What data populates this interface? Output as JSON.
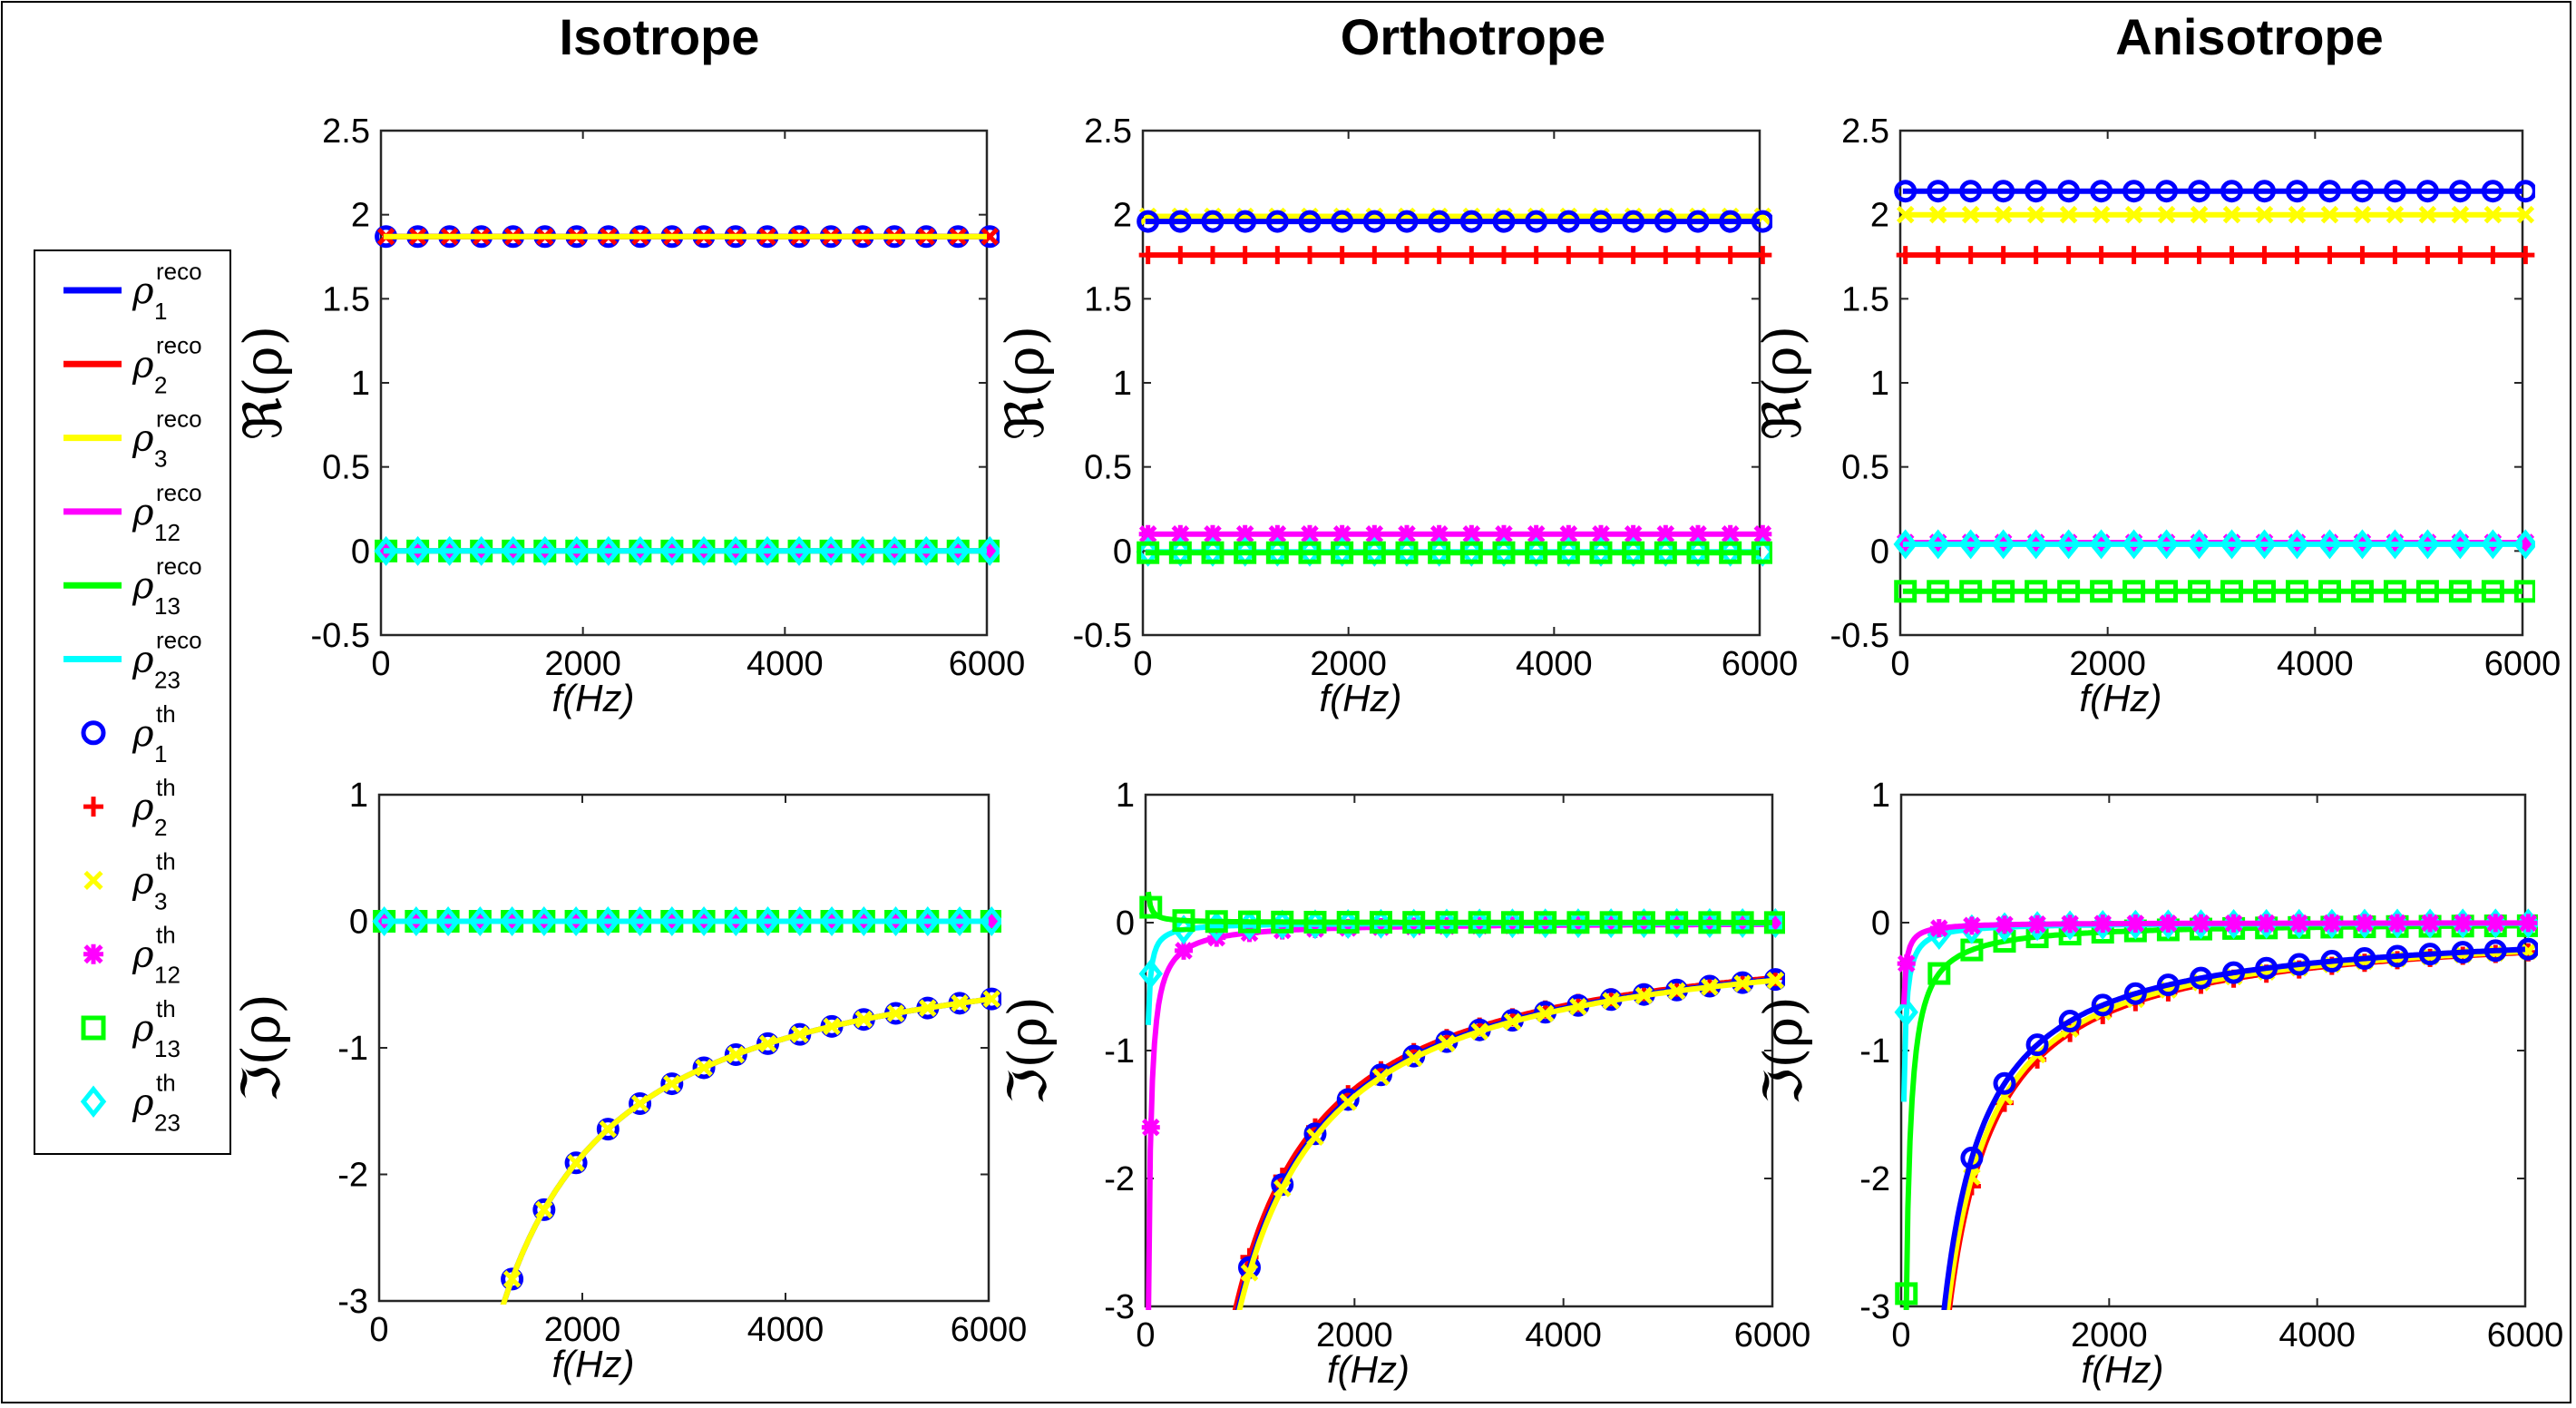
{
  "columns": [
    "Isotrope",
    "Orthotrope",
    "Anisotrope"
  ],
  "legend": [
    {
      "sym": "ρ",
      "sub": "1",
      "sup": "reco",
      "type": "line",
      "color": "#0000ff"
    },
    {
      "sym": "ρ",
      "sub": "2",
      "sup": "reco",
      "type": "line",
      "color": "#ff0000"
    },
    {
      "sym": "ρ",
      "sub": "3",
      "sup": "reco",
      "type": "line",
      "color": "#ffff00"
    },
    {
      "sym": "ρ",
      "sub": "12",
      "sup": "reco",
      "type": "line",
      "color": "#ff00ff"
    },
    {
      "sym": "ρ",
      "sub": "13",
      "sup": "reco",
      "type": "line",
      "color": "#00ff00"
    },
    {
      "sym": "ρ",
      "sub": "23",
      "sup": "reco",
      "type": "line",
      "color": "#00ffff"
    },
    {
      "sym": "ρ",
      "sub": "1",
      "sup": "th",
      "type": "marker",
      "marker": "circle",
      "color": "#0000ff"
    },
    {
      "sym": "ρ",
      "sub": "2",
      "sup": "th",
      "type": "marker",
      "marker": "plus",
      "color": "#ff0000"
    },
    {
      "sym": "ρ",
      "sub": "3",
      "sup": "th",
      "type": "marker",
      "marker": "x",
      "color": "#ffff00"
    },
    {
      "sym": "ρ",
      "sub": "12",
      "sup": "th",
      "type": "marker",
      "marker": "asterisk",
      "color": "#ff00ff"
    },
    {
      "sym": "ρ",
      "sub": "13",
      "sup": "th",
      "type": "marker",
      "marker": "square",
      "color": "#00ff00"
    },
    {
      "sym": "ρ",
      "sub": "23",
      "sup": "th",
      "type": "marker",
      "marker": "diamond",
      "color": "#00ffff"
    }
  ],
  "chart_data": [
    {
      "type": "line",
      "title": "Isotrope",
      "xlabel": "f(Hz)",
      "ylabel": "ℜ(ρ)",
      "xlim": [
        0,
        6000
      ],
      "ylim": [
        -0.5,
        2.5
      ],
      "xticks": [
        "0",
        "2000",
        "4000",
        "6000"
      ],
      "yticks": [
        "-0.5",
        "0",
        "0.5",
        "1",
        "1.5",
        "2",
        "2.5"
      ],
      "series": [
        {
          "name": "ρ1",
          "color": "#0000ff",
          "marker": "circle",
          "model": {
            "kind": "const",
            "c": 1.87
          }
        },
        {
          "name": "ρ2",
          "color": "#ff0000",
          "marker": "x",
          "model": {
            "kind": "const",
            "c": 1.87
          }
        },
        {
          "name": "ρ3",
          "color": "#ffff00",
          "marker": "none",
          "model": {
            "kind": "const",
            "c": 1.87
          }
        },
        {
          "name": "ρ12",
          "color": "#ff00ff",
          "marker": "asterisk",
          "model": {
            "kind": "const",
            "c": 0.0
          }
        },
        {
          "name": "ρ13",
          "color": "#00ff00",
          "marker": "square",
          "model": {
            "kind": "const",
            "c": 0.0
          }
        },
        {
          "name": "ρ23",
          "color": "#00ffff",
          "marker": "diamond",
          "model": {
            "kind": "const",
            "c": 0.0
          }
        }
      ]
    },
    {
      "type": "line",
      "title": "Orthotrope",
      "xlabel": "f(Hz)",
      "ylabel": "ℜ(ρ)",
      "xlim": [
        0,
        6000
      ],
      "ylim": [
        -0.5,
        2.5
      ],
      "xticks": [
        "0",
        "2000",
        "4000",
        "6000"
      ],
      "yticks": [
        "-0.5",
        "0",
        "0.5",
        "1",
        "1.5",
        "2",
        "2.5"
      ],
      "series": [
        {
          "name": "ρ3",
          "color": "#ffff00",
          "marker": "x",
          "model": {
            "kind": "const",
            "c": 1.99
          }
        },
        {
          "name": "ρ1",
          "color": "#0000ff",
          "marker": "circle",
          "model": {
            "kind": "const",
            "c": 1.96
          }
        },
        {
          "name": "ρ2",
          "color": "#ff0000",
          "marker": "plus",
          "model": {
            "kind": "const",
            "c": 1.76
          }
        },
        {
          "name": "ρ12",
          "color": "#ff00ff",
          "marker": "asterisk",
          "model": {
            "kind": "const",
            "c": 0.1
          }
        },
        {
          "name": "ρ23",
          "color": "#00ffff",
          "marker": "diamond",
          "model": {
            "kind": "const",
            "c": -0.005
          }
        },
        {
          "name": "ρ13",
          "color": "#00ff00",
          "marker": "square",
          "model": {
            "kind": "const",
            "c": -0.01
          }
        }
      ]
    },
    {
      "type": "line",
      "title": "Anisotrope",
      "xlabel": "f(Hz)",
      "ylabel": "ℜ(ρ)",
      "xlim": [
        0,
        6000
      ],
      "ylim": [
        -0.5,
        2.5
      ],
      "xticks": [
        "0",
        "2000",
        "4000",
        "6000"
      ],
      "yticks": [
        "-0.5",
        "0",
        "0.5",
        "1",
        "1.5",
        "2",
        "2.5"
      ],
      "series": [
        {
          "name": "ρ1",
          "color": "#0000ff",
          "marker": "circle",
          "model": {
            "kind": "const",
            "c": 2.14
          }
        },
        {
          "name": "ρ3",
          "color": "#ffff00",
          "marker": "x",
          "model": {
            "kind": "const",
            "c": 2.0
          }
        },
        {
          "name": "ρ2",
          "color": "#ff0000",
          "marker": "plus",
          "model": {
            "kind": "const",
            "c": 1.76
          }
        },
        {
          "name": "ρ12",
          "color": "#ff00ff",
          "marker": "asterisk",
          "model": {
            "kind": "const",
            "c": 0.05
          }
        },
        {
          "name": "ρ23",
          "color": "#00ffff",
          "marker": "diamond",
          "model": {
            "kind": "const",
            "c": 0.04
          }
        },
        {
          "name": "ρ13",
          "color": "#00ff00",
          "marker": "square",
          "model": {
            "kind": "const",
            "c": -0.24
          }
        }
      ]
    },
    {
      "type": "line",
      "title": "Isotrope",
      "xlabel": "f(Hz)",
      "ylabel": "ℑ(ρ)",
      "xlim": [
        0,
        6000
      ],
      "ylim": [
        -3,
        1
      ],
      "xticks": [
        "0",
        "2000",
        "4000",
        "6000"
      ],
      "yticks": [
        "-3",
        "-2",
        "-1",
        "0",
        "1"
      ],
      "series": [
        {
          "name": "ρ1",
          "color": "#0000ff",
          "marker": "circle",
          "model": {
            "kind": "inv",
            "a": -3700
          }
        },
        {
          "name": "ρ3",
          "color": "#ffff00",
          "marker": "x",
          "model": {
            "kind": "inv",
            "a": -3700
          }
        },
        {
          "name": "ρ12",
          "color": "#ff00ff",
          "marker": "asterisk",
          "model": {
            "kind": "const",
            "c": 0.0
          }
        },
        {
          "name": "ρ13",
          "color": "#00ff00",
          "marker": "square",
          "model": {
            "kind": "const",
            "c": 0.0
          }
        },
        {
          "name": "ρ23",
          "color": "#00ffff",
          "marker": "diamond",
          "model": {
            "kind": "const",
            "c": 0.0
          }
        }
      ]
    },
    {
      "type": "line",
      "title": "Orthotrope",
      "xlabel": "f(Hz)",
      "ylabel": "ℑ(ρ)",
      "xlim": [
        0,
        6000
      ],
      "ylim": [
        -3,
        1
      ],
      "xticks": [
        "0",
        "2000",
        "4000",
        "6000"
      ],
      "yticks": [
        "-3",
        "-2",
        "-1",
        "0",
        "1"
      ],
      "series": [
        {
          "name": "ρ2",
          "color": "#ff0000",
          "marker": "plus",
          "model": {
            "kind": "inv",
            "a": -2600
          }
        },
        {
          "name": "ρ1",
          "color": "#0000ff",
          "marker": "circle",
          "model": {
            "kind": "inv",
            "a": -2680
          }
        },
        {
          "name": "ρ3",
          "color": "#ffff00",
          "marker": "x",
          "model": {
            "kind": "inv",
            "a": -2720
          }
        },
        {
          "name": "ρ12",
          "color": "#ff00ff",
          "marker": "asterisk",
          "model": {
            "kind": "inv",
            "a": -80
          }
        },
        {
          "name": "ρ23",
          "color": "#00ffff",
          "marker": "diamond",
          "model": {
            "kind": "inv",
            "a": -20
          }
        },
        {
          "name": "ρ13",
          "color": "#00ff00",
          "marker": "square",
          "model": {
            "kind": "inv",
            "a": 6
          }
        }
      ]
    },
    {
      "type": "line",
      "title": "Anisotrope",
      "xlabel": "f(Hz)",
      "ylabel": "ℑ(ρ)",
      "xlim": [
        0,
        6000
      ],
      "ylim": [
        -3,
        1
      ],
      "xticks": [
        "0",
        "2000",
        "4000",
        "6000"
      ],
      "yticks": [
        "-3",
        "-2",
        "-1",
        "0",
        "1"
      ],
      "series": [
        {
          "name": "ρ2",
          "color": "#ff0000",
          "marker": "plus",
          "model": {
            "kind": "inv",
            "a": -1400
          }
        },
        {
          "name": "ρ3",
          "color": "#ffff00",
          "marker": "x",
          "model": {
            "kind": "inv",
            "a": -1350
          }
        },
        {
          "name": "ρ1",
          "color": "#0000ff",
          "marker": "circle",
          "model": {
            "kind": "inv",
            "a": -1250
          }
        },
        {
          "name": "ρ13",
          "color": "#00ff00",
          "marker": "square",
          "model": {
            "kind": "inv",
            "a": -145
          }
        },
        {
          "name": "ρ23",
          "color": "#00ffff",
          "marker": "diamond",
          "model": {
            "kind": "inv",
            "a": -35
          }
        },
        {
          "name": "ρ12",
          "color": "#ff00ff",
          "marker": "asterisk",
          "model": {
            "kind": "inv",
            "a": -16
          }
        }
      ]
    }
  ]
}
